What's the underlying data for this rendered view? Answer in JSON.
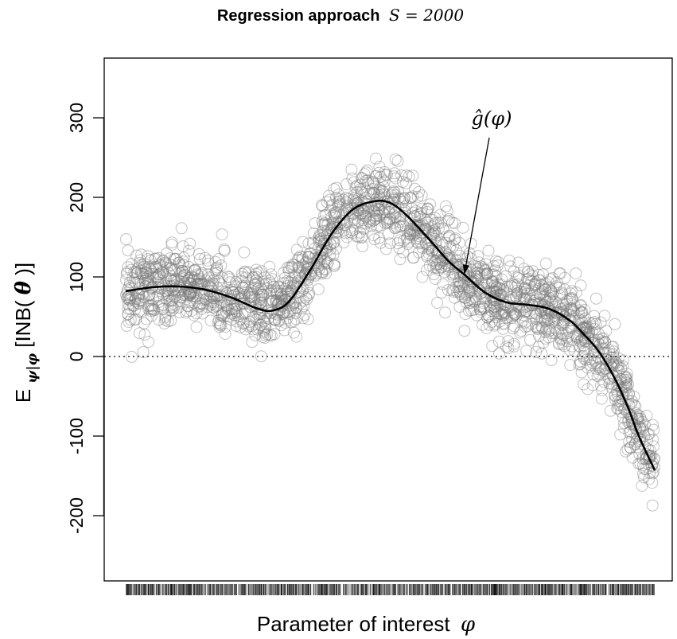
{
  "chart_data": {
    "type": "scatter",
    "title": "Regression approach",
    "title_math": "S = 2000",
    "xlabel": "Parameter of interest",
    "xlabel_symbol": "φ",
    "ylabel": {
      "lead": "E",
      "sub": "ψ|φ",
      "body": "[INB(",
      "theta": "θ",
      "close": ")]"
    },
    "yticks": [
      -200,
      -100,
      0,
      100,
      200,
      300
    ],
    "ylim": [
      -280,
      360
    ],
    "xlim": [
      0,
      1
    ],
    "zero_reference_line": true,
    "grid": false,
    "x_rug": true,
    "annotation": {
      "text": "ĝ(φ)",
      "points_to": {
        "x": 0.64,
        "y": 103
      }
    },
    "series": [
      {
        "role": "fitted_curve",
        "x": [
          0.0,
          0.05,
          0.1,
          0.15,
          0.2,
          0.25,
          0.28,
          0.31,
          0.35,
          0.39,
          0.43,
          0.47,
          0.5,
          0.53,
          0.57,
          0.61,
          0.64,
          0.68,
          0.72,
          0.76,
          0.8,
          0.84,
          0.87,
          0.89,
          0.91,
          0.93,
          0.95,
          0.97,
          1.0
        ],
        "y": [
          82,
          87,
          88,
          84,
          74,
          60,
          58,
          70,
          110,
          155,
          185,
          195,
          193,
          178,
          150,
          120,
          103,
          80,
          68,
          65,
          60,
          45,
          25,
          10,
          -10,
          -35,
          -65,
          -100,
          -143
        ]
      }
    ],
    "scatter": {
      "n": 2000,
      "marker": "open-circle",
      "color": "#777777",
      "opacity": 0.45,
      "noise_sd": 24
    }
  }
}
